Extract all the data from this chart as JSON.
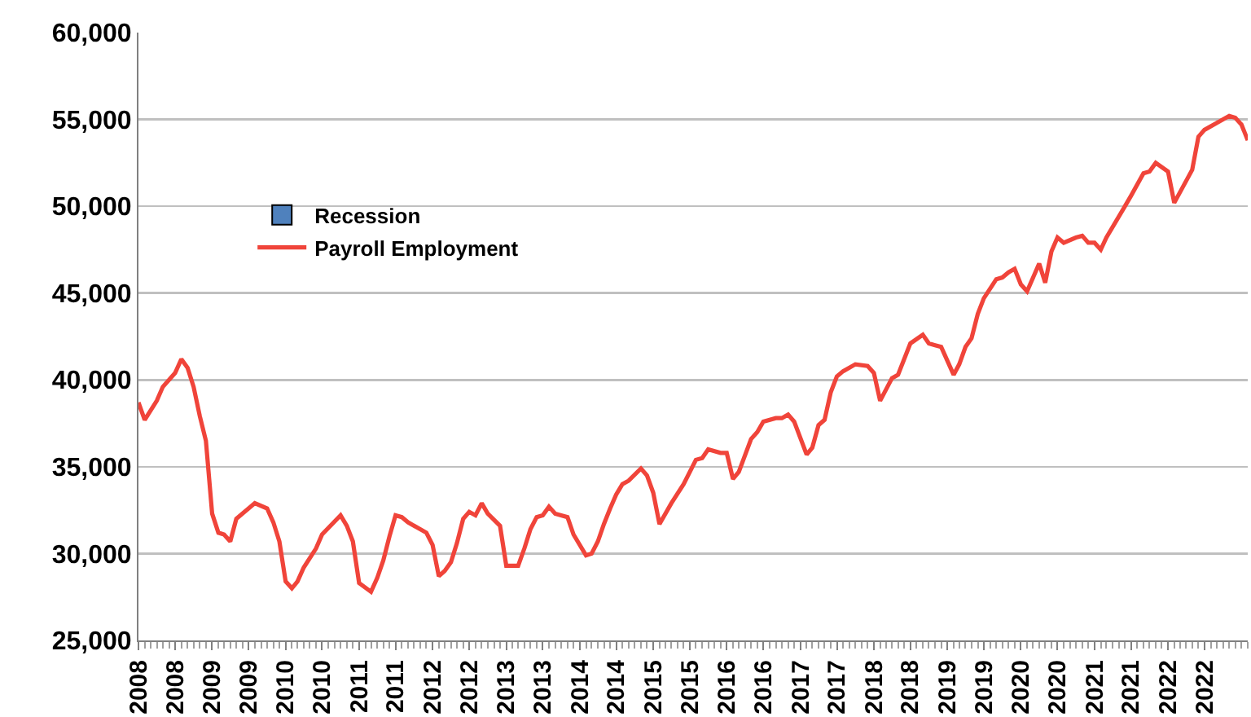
{
  "chart_data": {
    "type": "line",
    "legend": "left",
    "grid": "y",
    "ylim": [
      25000,
      60000
    ],
    "yticks": [
      {
        "value": 25000,
        "label": "25,000"
      },
      {
        "value": 30000,
        "label": "30,000"
      },
      {
        "value": 35000,
        "label": "35,000"
      },
      {
        "value": 40000,
        "label": "40,000"
      },
      {
        "value": 45000,
        "label": "45,000"
      },
      {
        "value": 50000,
        "label": "50,000"
      },
      {
        "value": 55000,
        "label": "55,000"
      },
      {
        "value": 60000,
        "label": "60,000"
      }
    ],
    "xlim": [
      "2008-01",
      "2023-02"
    ],
    "xticks": [
      {
        "value": "2008-01",
        "label": "2008"
      },
      {
        "value": "2008-07",
        "label": "2008"
      },
      {
        "value": "2009-01",
        "label": "2009"
      },
      {
        "value": "2009-07",
        "label": "2009"
      },
      {
        "value": "2010-01",
        "label": "2010"
      },
      {
        "value": "2010-07",
        "label": "2010"
      },
      {
        "value": "2011-01",
        "label": "2011"
      },
      {
        "value": "2011-07",
        "label": "2011"
      },
      {
        "value": "2012-01",
        "label": "2012"
      },
      {
        "value": "2012-07",
        "label": "2012"
      },
      {
        "value": "2013-01",
        "label": "2013"
      },
      {
        "value": "2013-07",
        "label": "2013"
      },
      {
        "value": "2014-01",
        "label": "2014"
      },
      {
        "value": "2014-07",
        "label": "2014"
      },
      {
        "value": "2015-01",
        "label": "2015"
      },
      {
        "value": "2015-07",
        "label": "2015"
      },
      {
        "value": "2016-01",
        "label": "2016"
      },
      {
        "value": "2016-07",
        "label": "2016"
      },
      {
        "value": "2017-01",
        "label": "2017"
      },
      {
        "value": "2017-07",
        "label": "2017"
      },
      {
        "value": "2018-01",
        "label": "2018"
      },
      {
        "value": "2018-07",
        "label": "2018"
      },
      {
        "value": "2019-01",
        "label": "2019"
      },
      {
        "value": "2019-07",
        "label": "2019"
      },
      {
        "value": "2020-01",
        "label": "2020"
      },
      {
        "value": "2020-07",
        "label": "2020"
      },
      {
        "value": "2021-01",
        "label": "2021"
      },
      {
        "value": "2021-07",
        "label": "2021"
      },
      {
        "value": "2022-01",
        "label": "2022"
      },
      {
        "value": "2022-07",
        "label": "2022"
      }
    ],
    "series": [
      {
        "name": "Recession",
        "type": "bar",
        "color": "#4f81bd",
        "values": [
          null
        ]
      },
      {
        "name": "Payroll Employment",
        "color": "#f0443a",
        "line_style": "solid",
        "x": [
          "2008-01",
          "2008-02",
          "2008-04",
          "2008-05",
          "2008-07",
          "2008-08",
          "2008-09",
          "2008-10",
          "2008-11",
          "2008-12",
          "2009-01",
          "2009-02",
          "2009-03",
          "2009-04",
          "2009-05",
          "2009-08",
          "2009-10",
          "2009-11",
          "2009-12",
          "2010-01",
          "2010-02",
          "2010-03",
          "2010-04",
          "2010-06",
          "2010-07",
          "2010-10",
          "2010-11",
          "2010-12",
          "2011-01",
          "2011-03",
          "2011-04",
          "2011-05",
          "2011-06",
          "2011-07",
          "2011-08",
          "2011-09",
          "2011-12",
          "2012-01",
          "2012-02",
          "2012-03",
          "2012-04",
          "2012-05",
          "2012-06",
          "2012-07",
          "2012-08",
          "2012-09",
          "2012-10",
          "2012-12",
          "2013-01",
          "2013-03",
          "2013-04",
          "2013-05",
          "2013-06",
          "2013-07",
          "2013-08",
          "2013-09",
          "2013-11",
          "2013-12",
          "2014-02",
          "2014-03",
          "2014-04",
          "2014-05",
          "2014-06",
          "2014-07",
          "2014-08",
          "2014-09",
          "2014-11",
          "2014-12",
          "2015-01",
          "2015-02",
          "2015-04",
          "2015-06",
          "2015-08",
          "2015-09",
          "2015-10",
          "2015-12",
          "2016-01",
          "2016-02",
          "2016-03",
          "2016-05",
          "2016-06",
          "2016-07",
          "2016-09",
          "2016-10",
          "2016-11",
          "2016-12",
          "2017-02",
          "2017-03",
          "2017-04",
          "2017-05",
          "2017-06",
          "2017-07",
          "2017-08",
          "2017-10",
          "2017-12",
          "2018-01",
          "2018-02",
          "2018-04",
          "2018-05",
          "2018-07",
          "2018-09",
          "2018-10",
          "2018-11",
          "2018-12",
          "2019-02",
          "2019-03",
          "2019-04",
          "2019-05",
          "2019-06",
          "2019-07",
          "2019-09",
          "2019-10",
          "2019-11",
          "2019-12",
          "2020-01",
          "2020-02",
          "2020-04",
          "2020-05",
          "2020-06",
          "2020-07",
          "2020-08",
          "2020-10",
          "2020-11",
          "2020-12",
          "2021-01",
          "2021-02",
          "2021-03",
          "2021-06",
          "2021-07",
          "2021-09",
          "2021-10",
          "2021-11",
          "2022-01",
          "2022-02",
          "2022-05",
          "2022-06",
          "2022-07",
          "2022-09",
          "2022-11",
          "2022-12",
          "2023-01",
          "2023-02"
        ],
        "values": [
          38700,
          37700,
          38800,
          39600,
          40400,
          41200,
          40700,
          39600,
          37900,
          36500,
          32300,
          31200,
          31100,
          30700,
          32000,
          32900,
          32600,
          31800,
          30700,
          28400,
          28000,
          28400,
          29200,
          30300,
          31100,
          32200,
          31600,
          30700,
          28300,
          27800,
          28600,
          29600,
          31000,
          32200,
          32100,
          31800,
          31200,
          30500,
          28700,
          29000,
          29500,
          30600,
          32000,
          32400,
          32200,
          32900,
          32300,
          31600,
          29300,
          29300,
          30300,
          31400,
          32100,
          32200,
          32700,
          32300,
          32100,
          31100,
          29900,
          30000,
          30700,
          31700,
          32600,
          33400,
          34000,
          34200,
          34900,
          34500,
          33500,
          31700,
          32900,
          34000,
          35400,
          35500,
          36000,
          35800,
          35800,
          34300,
          34700,
          36600,
          37000,
          37600,
          37800,
          37800,
          38000,
          37600,
          35700,
          36100,
          37400,
          37700,
          39300,
          40200,
          40500,
          40900,
          40800,
          40400,
          38800,
          40100,
          40300,
          42100,
          42600,
          42100,
          42000,
          41900,
          40300,
          40900,
          41900,
          42400,
          43800,
          44700,
          45800,
          45900,
          46200,
          46400,
          45500,
          45100,
          46700,
          45600,
          47400,
          48200,
          47900,
          48200,
          48300,
          47900,
          47900,
          47500,
          48200,
          50000,
          50600,
          51900,
          52000,
          52500,
          52000,
          50200,
          52100,
          54000,
          54400,
          54800,
          55200,
          55100,
          54700,
          53800
        ]
      }
    ]
  }
}
